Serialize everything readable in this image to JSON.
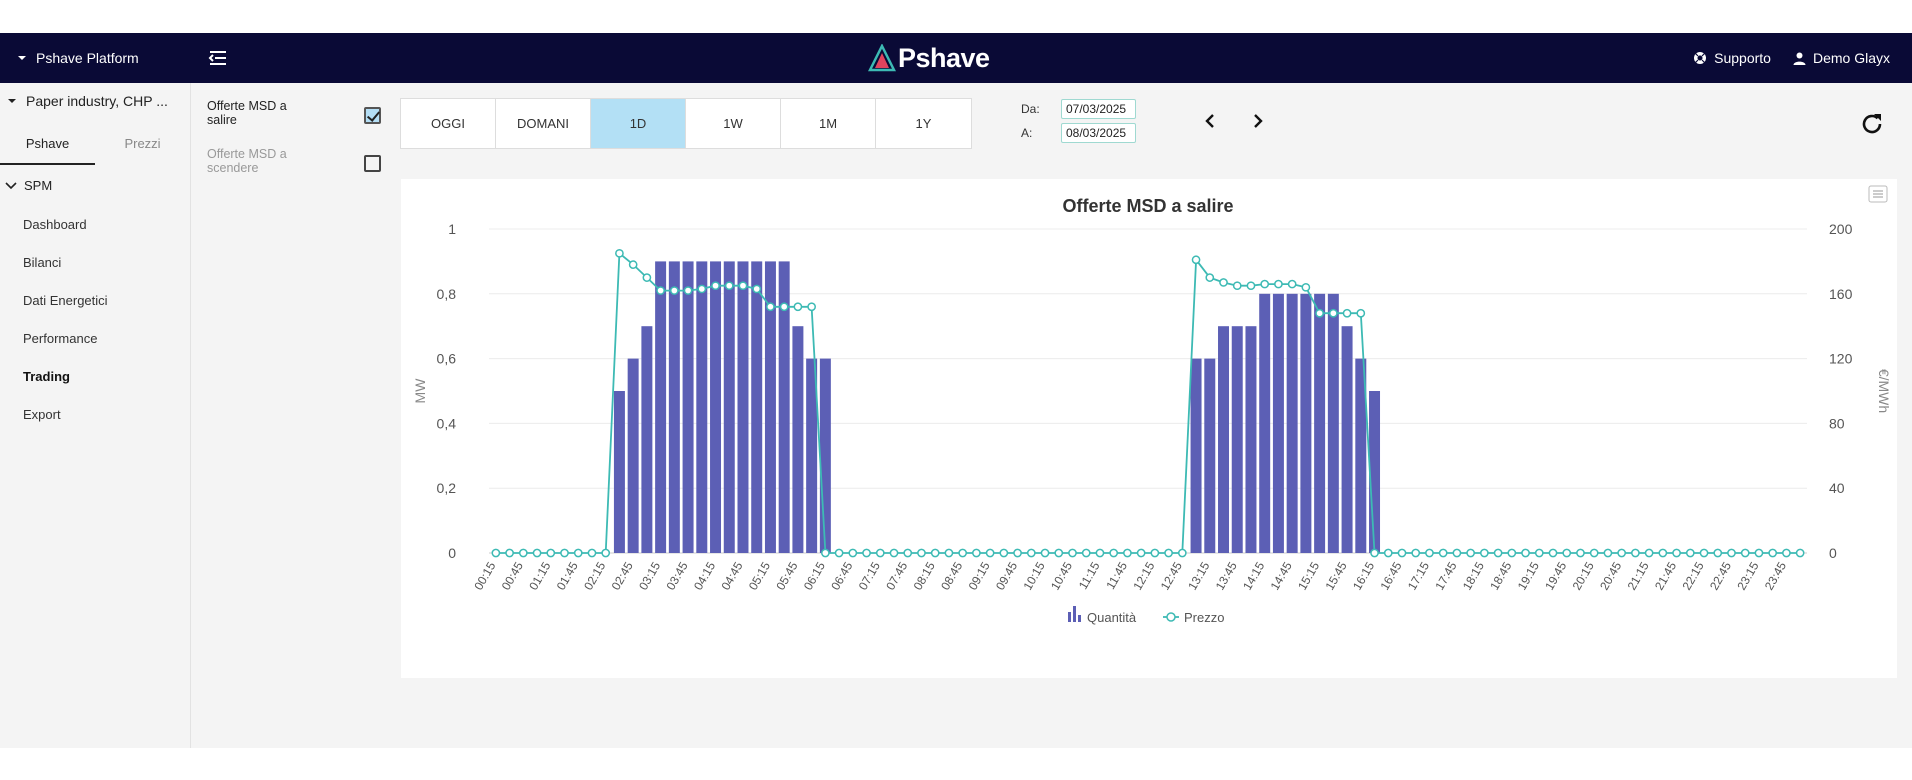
{
  "navbar": {
    "platform_label": "Pshave Platform",
    "logo_text": "Pshave",
    "support_label": "Supporto",
    "user_label": "Demo Glayx"
  },
  "sidebar": {
    "plant_label": "Paper industry, CHP ...",
    "tabs": [
      {
        "label": "Pshave"
      },
      {
        "label": "Prezzi"
      }
    ],
    "section_label": "SPM",
    "items": [
      {
        "label": "Dashboard"
      },
      {
        "label": "Bilanci"
      },
      {
        "label": "Dati Energetici"
      },
      {
        "label": "Performance"
      },
      {
        "label": "Trading"
      },
      {
        "label": "Export"
      }
    ]
  },
  "filters": [
    {
      "label": "Offerte MSD a salire",
      "checked": true
    },
    {
      "label": "Offerte MSD a scendere",
      "checked": false
    }
  ],
  "periods": [
    {
      "label": "OGGI"
    },
    {
      "label": "DOMANI"
    },
    {
      "label": "1D",
      "active": true
    },
    {
      "label": "1W"
    },
    {
      "label": "1M"
    },
    {
      "label": "1Y"
    }
  ],
  "dates": {
    "from_label": "Da:",
    "from_value": "07/03/2025",
    "to_label": "A:",
    "to_value": "08/03/2025"
  },
  "colors": {
    "navbar": "#0a0a36",
    "bar": "#5c5fb5",
    "line": "#3dbab4",
    "active_period": "#b3e0f5"
  },
  "chart_data": {
    "type": "bar",
    "title": "Offerte MSD a salire",
    "ylabel": "MW",
    "y2label": "€/MWh",
    "ylim": [
      0,
      1
    ],
    "y2lim": [
      0,
      200
    ],
    "yticks": [
      "0",
      "0,2",
      "0,4",
      "0,6",
      "0,8",
      "1"
    ],
    "y2ticks": [
      "0",
      "40",
      "80",
      "120",
      "160",
      "200"
    ],
    "x": [
      "00:15",
      "00:30",
      "00:45",
      "01:00",
      "01:15",
      "01:30",
      "01:45",
      "02:00",
      "02:15",
      "02:30",
      "02:45",
      "03:00",
      "03:15",
      "03:30",
      "03:45",
      "04:00",
      "04:15",
      "04:30",
      "04:45",
      "05:00",
      "05:15",
      "05:30",
      "05:45",
      "06:00",
      "06:15",
      "06:30",
      "06:45",
      "07:00",
      "07:15",
      "07:30",
      "07:45",
      "08:00",
      "08:15",
      "08:30",
      "08:45",
      "09:00",
      "09:15",
      "09:30",
      "09:45",
      "10:00",
      "10:15",
      "10:30",
      "10:45",
      "11:00",
      "11:15",
      "11:30",
      "11:45",
      "12:00",
      "12:15",
      "12:30",
      "12:45",
      "13:00",
      "13:15",
      "13:30",
      "13:45",
      "14:00",
      "14:15",
      "14:30",
      "14:45",
      "15:00",
      "15:15",
      "15:30",
      "15:45",
      "16:00",
      "16:15",
      "16:30",
      "16:45",
      "17:00",
      "17:15",
      "17:30",
      "17:45",
      "18:00",
      "18:15",
      "18:30",
      "18:45",
      "19:00",
      "19:15",
      "19:30",
      "19:45",
      "20:00",
      "20:15",
      "20:30",
      "20:45",
      "21:00",
      "21:15",
      "21:30",
      "21:45",
      "22:00",
      "22:15",
      "22:30",
      "22:45",
      "23:00",
      "23:15",
      "23:30",
      "23:45",
      "00:00"
    ],
    "series": [
      {
        "name": "Quantità",
        "type": "bar",
        "axis": "left",
        "values": [
          0,
          0,
          0,
          0,
          0,
          0,
          0,
          0,
          0,
          0.5,
          0.6,
          0.7,
          0.9,
          0.9,
          0.9,
          0.9,
          0.9,
          0.9,
          0.9,
          0.9,
          0.9,
          0.9,
          0.7,
          0.6,
          0.6,
          0,
          0,
          0,
          0,
          0,
          0,
          0,
          0,
          0,
          0,
          0,
          0,
          0,
          0,
          0,
          0,
          0,
          0,
          0,
          0,
          0,
          0,
          0,
          0,
          0,
          0,
          0.6,
          0.6,
          0.7,
          0.7,
          0.7,
          0.8,
          0.8,
          0.8,
          0.8,
          0.8,
          0.8,
          0.7,
          0.6,
          0.5,
          0,
          0,
          0,
          0,
          0,
          0,
          0,
          0,
          0,
          0,
          0,
          0,
          0,
          0,
          0,
          0,
          0,
          0,
          0,
          0,
          0,
          0,
          0,
          0,
          0,
          0,
          0,
          0,
          0,
          0,
          0
        ]
      },
      {
        "name": "Prezzo",
        "type": "line",
        "axis": "right",
        "values": [
          0,
          0,
          0,
          0,
          0,
          0,
          0,
          0,
          0,
          185,
          178,
          170,
          162,
          162,
          162,
          163,
          165,
          165,
          165,
          163,
          152,
          152,
          152,
          152,
          0,
          0,
          0,
          0,
          0,
          0,
          0,
          0,
          0,
          0,
          0,
          0,
          0,
          0,
          0,
          0,
          0,
          0,
          0,
          0,
          0,
          0,
          0,
          0,
          0,
          0,
          0,
          181,
          170,
          167,
          165,
          165,
          166,
          166,
          166,
          164,
          148,
          148,
          148,
          148,
          0,
          0,
          0,
          0,
          0,
          0,
          0,
          0,
          0,
          0,
          0,
          0,
          0,
          0,
          0,
          0,
          0,
          0,
          0,
          0,
          0,
          0,
          0,
          0,
          0,
          0,
          0,
          0,
          0,
          0,
          0,
          0
        ]
      }
    ],
    "legend_position": "bottom",
    "grid": true
  }
}
